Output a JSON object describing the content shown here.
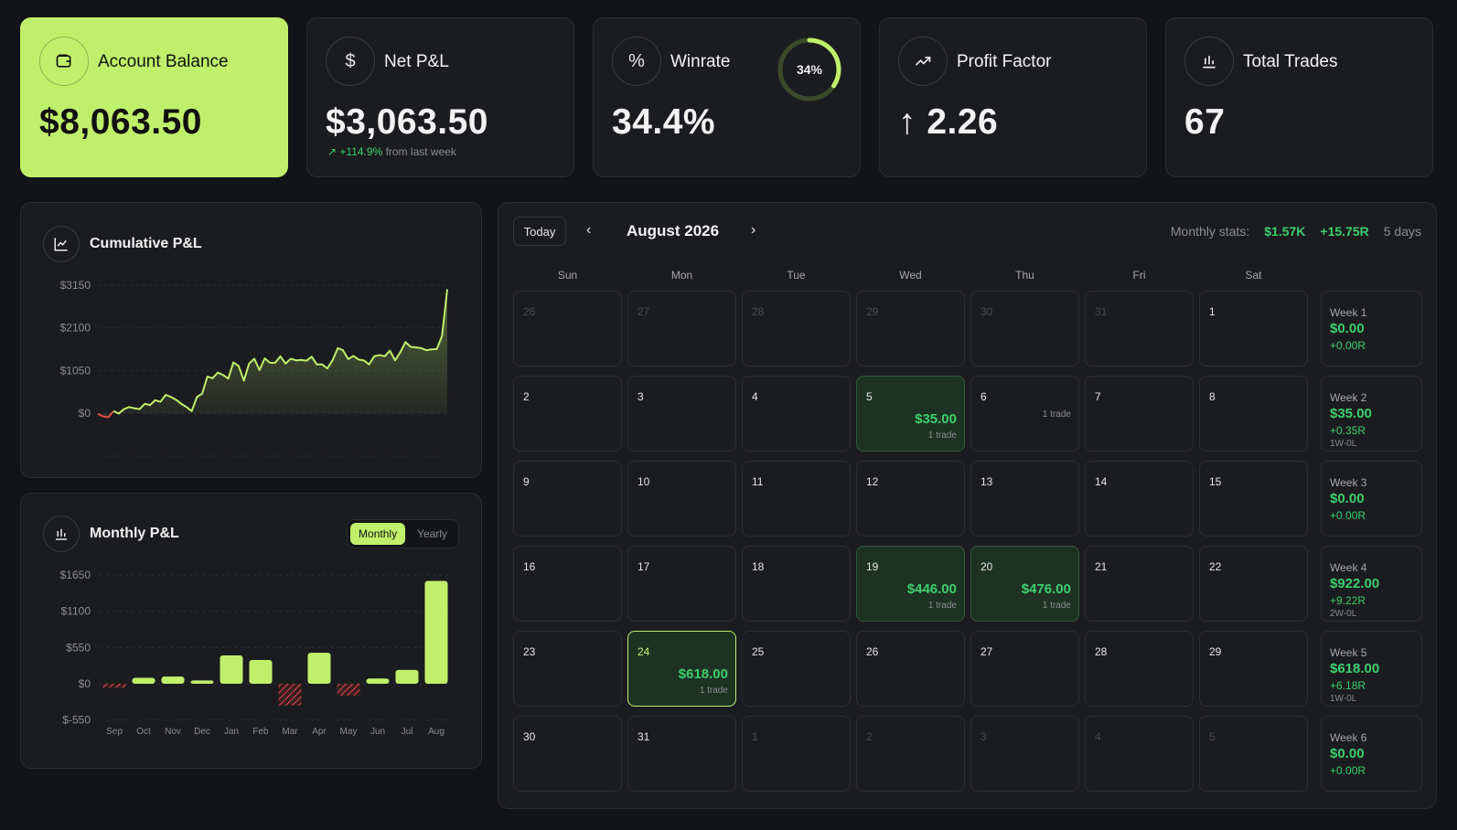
{
  "stats": {
    "balance": {
      "label": "Account Balance",
      "value": "$8,063.50",
      "icon": "wallet-icon"
    },
    "net_pnl": {
      "label": "Net P&L",
      "value": "$3,063.50",
      "change": "+114.9%",
      "change_suffix": "from last week",
      "icon": "dollar-icon"
    },
    "winrate": {
      "label": "Winrate",
      "value": "34.4%",
      "ring_label": "34%",
      "ring_fraction": 0.344,
      "icon": "percent-icon"
    },
    "profit_factor": {
      "label": "Profit Factor",
      "value": "2.26",
      "arrow": "↑",
      "icon": "trending-up-icon"
    },
    "total_trades": {
      "label": "Total Trades",
      "value": "67",
      "icon": "bar-chart-icon"
    }
  },
  "cumulative": {
    "title": "Cumulative P&L",
    "icon": "line-chart-icon"
  },
  "monthly": {
    "title": "Monthly P&L",
    "icon": "bar-chart-icon",
    "toggle": [
      "Monthly",
      "Yearly"
    ],
    "toggle_active": "Monthly"
  },
  "calendar": {
    "today_label": "Today",
    "month": "August 2026",
    "stats_label": "Monthly stats:",
    "stats_pnl": "$1.57K",
    "stats_r": "+15.75R",
    "stats_days": "5 days",
    "weekdays": [
      "Sun",
      "Mon",
      "Tue",
      "Wed",
      "Thu",
      "Fri",
      "Sat"
    ],
    "days": [
      {
        "n": "26",
        "muted": true
      },
      {
        "n": "27",
        "muted": true
      },
      {
        "n": "28",
        "muted": true
      },
      {
        "n": "29",
        "muted": true
      },
      {
        "n": "30",
        "muted": true
      },
      {
        "n": "31",
        "muted": true
      },
      {
        "n": "1"
      },
      {
        "n": "2"
      },
      {
        "n": "3"
      },
      {
        "n": "4"
      },
      {
        "n": "5",
        "pnl": "$35.00",
        "trades": "1 trade",
        "state": "win"
      },
      {
        "n": "6",
        "trades": "1 trade"
      },
      {
        "n": "7"
      },
      {
        "n": "8"
      },
      {
        "n": "9"
      },
      {
        "n": "10"
      },
      {
        "n": "11"
      },
      {
        "n": "12"
      },
      {
        "n": "13"
      },
      {
        "n": "14"
      },
      {
        "n": "15"
      },
      {
        "n": "16"
      },
      {
        "n": "17"
      },
      {
        "n": "18"
      },
      {
        "n": "19",
        "pnl": "$446.00",
        "trades": "1 trade",
        "state": "win"
      },
      {
        "n": "20",
        "pnl": "$476.00",
        "trades": "1 trade",
        "state": "win"
      },
      {
        "n": "21"
      },
      {
        "n": "22"
      },
      {
        "n": "23"
      },
      {
        "n": "24",
        "pnl": "$618.00",
        "trades": "1 trade",
        "state": "hl"
      },
      {
        "n": "25"
      },
      {
        "n": "26"
      },
      {
        "n": "27"
      },
      {
        "n": "28"
      },
      {
        "n": "29"
      },
      {
        "n": "30"
      },
      {
        "n": "31"
      },
      {
        "n": "1",
        "muted": true
      },
      {
        "n": "2",
        "muted": true
      },
      {
        "n": "3",
        "muted": true
      },
      {
        "n": "4",
        "muted": true
      },
      {
        "n": "5",
        "muted": true
      }
    ],
    "weeks": [
      {
        "label": "Week 1",
        "pnl": "$0.00",
        "r": "+0.00R",
        "wl": ""
      },
      {
        "label": "Week 2",
        "pnl": "$35.00",
        "r": "+0.35R",
        "wl": "1W-0L"
      },
      {
        "label": "Week 3",
        "pnl": "$0.00",
        "r": "+0.00R",
        "wl": ""
      },
      {
        "label": "Week 4",
        "pnl": "$922.00",
        "r": "+9.22R",
        "wl": "2W-0L"
      },
      {
        "label": "Week 5",
        "pnl": "$618.00",
        "r": "+6.18R",
        "wl": "1W-0L"
      },
      {
        "label": "Week 6",
        "pnl": "$0.00",
        "r": "+0.00R",
        "wl": ""
      }
    ]
  },
  "chart_data": [
    {
      "type": "area",
      "title": "Cumulative P&L",
      "ylim": [
        -200,
        3150
      ],
      "yticks": [
        "$3150",
        "$2100",
        "$1050",
        "$0"
      ],
      "ytick_values": [
        3150,
        2100,
        1050,
        0
      ],
      "values": [
        -20,
        -80,
        -100,
        50,
        -10,
        100,
        150,
        120,
        100,
        230,
        200,
        320,
        280,
        450,
        400,
        330,
        230,
        150,
        50,
        400,
        480,
        900,
        860,
        1000,
        940,
        850,
        1250,
        1160,
        800,
        1220,
        1340,
        1060,
        1350,
        1240,
        1240,
        1400,
        1220,
        1340,
        1300,
        1310,
        1290,
        1390,
        1200,
        1200,
        1100,
        1300,
        1600,
        1550,
        1330,
        1410,
        1320,
        1300,
        1200,
        1400,
        1430,
        1400,
        1540,
        1300,
        1500,
        1750,
        1630,
        1620,
        1600,
        1550,
        1570,
        1580,
        1900,
        3050
      ],
      "colors": {
        "line": "#c0f06b",
        "negative": "#e04a4a"
      }
    },
    {
      "type": "bar",
      "title": "Monthly P&L",
      "categories": [
        "Sep",
        "Oct",
        "Nov",
        "Dec",
        "Jan",
        "Feb",
        "Mar",
        "Apr",
        "May",
        "Jun",
        "Jul",
        "Aug"
      ],
      "values": [
        -60,
        90,
        110,
        50,
        430,
        360,
        -330,
        470,
        -180,
        80,
        210,
        1560
      ],
      "ylim": [
        -550,
        1650
      ],
      "yticks": [
        "$1650",
        "$1100",
        "$550",
        "$0",
        "$-550"
      ],
      "ytick_values": [
        1650,
        1100,
        550,
        0,
        -550
      ],
      "colors": {
        "positive": "#c0f06b",
        "negative": "#e04a4a"
      }
    }
  ]
}
